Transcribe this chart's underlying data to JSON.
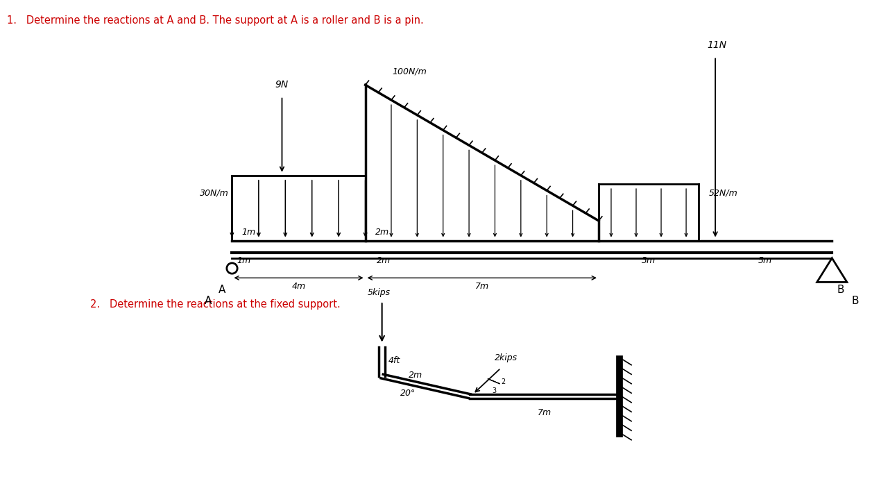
{
  "title1": "1.   Determine the reactions at A and B. The support at A is a roller and B is a pin.",
  "title2": "2.   Determine the reactions at the fixed support.",
  "bg_color": "#ffffff",
  "title_color": "#cc0000",
  "beam1": {
    "label_A": "A",
    "label_B": "B",
    "label_30Nm": "30N/m",
    "label_1m": "1m",
    "label_2m_udl1": "2m",
    "label_9N": "9N",
    "label_100Nm": "100N/m",
    "label_2m_udl2": "2m",
    "label_7m": "7m",
    "label_52Nm": "52N/m",
    "label_3m": "3m",
    "label_11N": "11N",
    "label_5m": "5m",
    "label_4m": "4m"
  },
  "beam2": {
    "label_5kips": "5kips",
    "label_4ft": "4ft",
    "label_20deg": "20°",
    "label_2m": "2m",
    "label_2kips": "2kips",
    "label_7m": "7m",
    "ratio_2": "2",
    "ratio_3": "3"
  }
}
